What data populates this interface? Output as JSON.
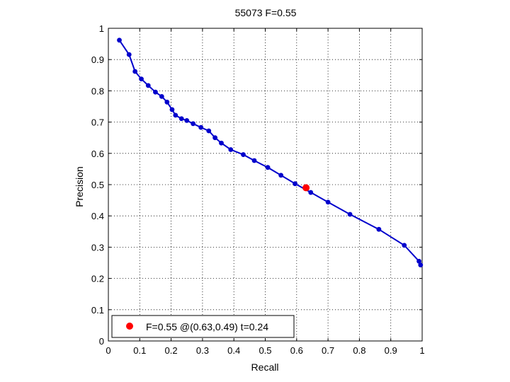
{
  "chart_data": {
    "type": "line",
    "title": "55073 F=0.55",
    "xlabel": "Recall",
    "ylabel": "Precision",
    "xlim": [
      0,
      1
    ],
    "ylim": [
      0,
      1
    ],
    "x_ticks": [
      "0",
      "0.1",
      "0.2",
      "0.3",
      "0.4",
      "0.5",
      "0.6",
      "0.7",
      "0.8",
      "0.9",
      "1"
    ],
    "y_ticks": [
      "0",
      "0.1",
      "0.2",
      "0.3",
      "0.4",
      "0.5",
      "0.6",
      "0.7",
      "0.8",
      "0.9",
      "1"
    ],
    "grid": true,
    "legend_position": "bottom-left",
    "series": [
      {
        "color": "#0000cc",
        "marker": "dot",
        "points": [
          [
            0.035,
            0.962
          ],
          [
            0.066,
            0.916
          ],
          [
            0.085,
            0.862
          ],
          [
            0.105,
            0.838
          ],
          [
            0.127,
            0.817
          ],
          [
            0.15,
            0.796
          ],
          [
            0.17,
            0.782
          ],
          [
            0.187,
            0.764
          ],
          [
            0.203,
            0.74
          ],
          [
            0.214,
            0.722
          ],
          [
            0.233,
            0.711
          ],
          [
            0.25,
            0.705
          ],
          [
            0.27,
            0.695
          ],
          [
            0.295,
            0.683
          ],
          [
            0.32,
            0.672
          ],
          [
            0.34,
            0.65
          ],
          [
            0.36,
            0.633
          ],
          [
            0.39,
            0.612
          ],
          [
            0.43,
            0.596
          ],
          [
            0.465,
            0.577
          ],
          [
            0.508,
            0.555
          ],
          [
            0.55,
            0.53
          ],
          [
            0.595,
            0.503
          ],
          [
            0.645,
            0.475
          ],
          [
            0.7,
            0.444
          ],
          [
            0.77,
            0.405
          ],
          [
            0.862,
            0.357
          ],
          [
            0.943,
            0.306
          ],
          [
            0.99,
            0.255
          ],
          [
            0.995,
            0.243
          ]
        ]
      }
    ],
    "highlight": {
      "x": 0.63,
      "y": 0.49,
      "color": "#ff0000",
      "label": "F=0.55 @(0.63,0.49) t=0.24"
    }
  }
}
